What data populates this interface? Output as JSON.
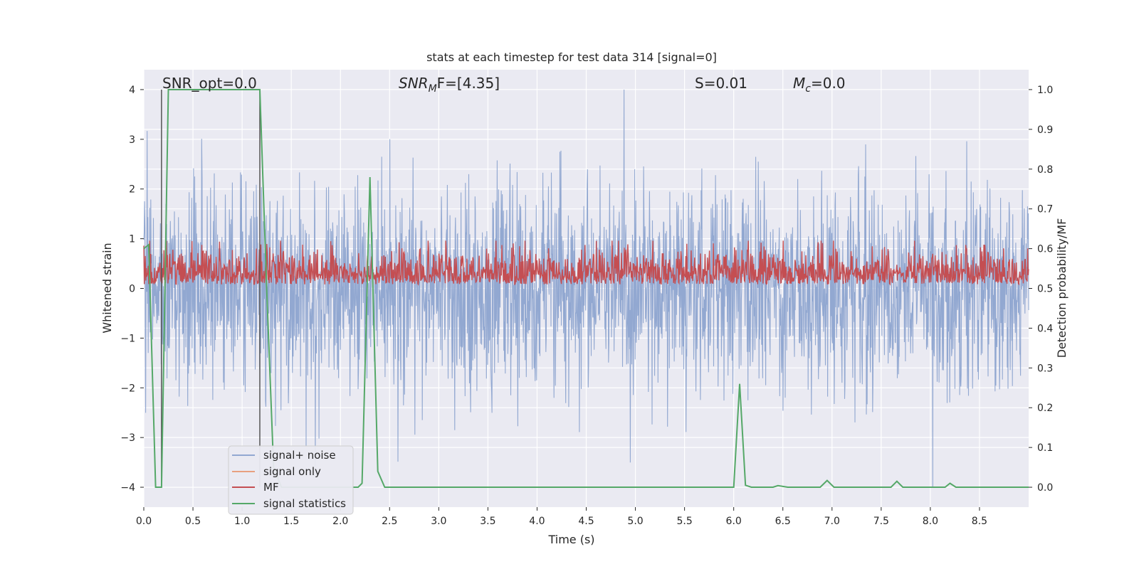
{
  "chart_data": {
    "type": "line",
    "title": "stats at each timestep for test data 314 [signal=0]",
    "xlabel": "Time (s)",
    "ylabel": "Whitened strain",
    "y2label": "Detection probability/MF",
    "xlim": [
      0.0,
      9.0
    ],
    "ylim": [
      -4.4,
      4.4
    ],
    "y2lim": [
      -0.05,
      1.05
    ],
    "xticks": [
      "0.0",
      "0.5",
      "1.0",
      "1.5",
      "2.0",
      "2.5",
      "3.0",
      "3.5",
      "4.0",
      "4.5",
      "5.0",
      "5.5",
      "6.0",
      "6.5",
      "7.0",
      "7.5",
      "8.0",
      "8.5"
    ],
    "yticks": [
      "4",
      "3",
      "2",
      "1",
      "0",
      "−1",
      "−2",
      "−3",
      "−4"
    ],
    "y2ticks": [
      "1.0",
      "0.9",
      "0.8",
      "0.7",
      "0.6",
      "0.5",
      "0.4",
      "0.3",
      "0.2",
      "0.1",
      "0.0"
    ],
    "annotations": {
      "snr_opt": "SNR_opt=0.0",
      "snr_mf_sym": "SNR",
      "snr_mf_sub": "M",
      "snr_mf_rest": "F=[4.35]",
      "s_stat": "S=0.01",
      "mc_sym": "M",
      "mc_sub": "c",
      "mc_rest": "=0.0"
    },
    "vlines": [
      0.18,
      1.18
    ],
    "legend": {
      "placement": "lower-left",
      "entries": [
        "signal+ noise",
        "signal only",
        "MF",
        "signal statistics"
      ]
    },
    "colors": {
      "noise": "#92a8d1",
      "signal_only": "#e8a07f",
      "mf": "#c44e52",
      "stats": "#55a868",
      "background": "#eaeaf2",
      "grid": "#ffffff",
      "vline": "#555555"
    },
    "series": [
      {
        "name": "signal+ noise",
        "axis": "left",
        "noise_amplitude_typical": 1.6,
        "noise_amplitude_peak": 4.0,
        "noise_range": [
          -4.0,
          4.0
        ]
      },
      {
        "name": "signal only",
        "axis": "left",
        "values": []
      },
      {
        "name": "MF",
        "axis": "right",
        "noise_band": [
          0.5,
          0.63
        ],
        "noise_peak": 0.62
      },
      {
        "name": "signal statistics",
        "axis": "right",
        "x": [
          0.0,
          0.05,
          0.12,
          0.18,
          0.25,
          1.18,
          1.25,
          1.32,
          1.4,
          2.18,
          2.22,
          2.3,
          2.38,
          2.45,
          6.0,
          6.06,
          6.12,
          6.18,
          6.25,
          6.4,
          6.45,
          6.55,
          6.88,
          6.95,
          7.02,
          7.6,
          7.66,
          7.72,
          8.15,
          8.2,
          8.26,
          9.0
        ],
        "values": [
          0.6,
          0.61,
          0.0,
          0.0,
          1.0,
          1.0,
          0.5,
          0.05,
          0.0,
          0.0,
          0.01,
          0.78,
          0.04,
          0.0,
          0.0,
          0.26,
          0.005,
          0.0,
          0.0,
          0.0,
          0.004,
          0.0,
          0.0,
          0.017,
          0.0,
          0.0,
          0.015,
          0.0,
          0.0,
          0.01,
          0.0,
          0.0
        ]
      }
    ]
  }
}
